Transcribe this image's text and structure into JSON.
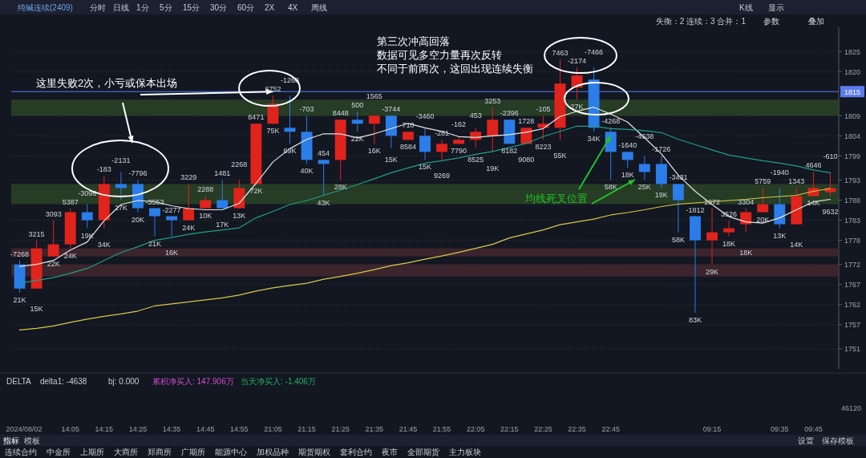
{
  "chart_data": {
    "type": "candlestick",
    "categories": [
      "2024/08/02",
      null,
      null,
      "14:05",
      null,
      "14:15",
      null,
      "14:25",
      null,
      "14:35",
      null,
      "14:45",
      null,
      "14:55",
      null,
      "21:05",
      null,
      "21:15",
      null,
      "21:25",
      null,
      "21:35",
      null,
      "21:45",
      null,
      "21:55",
      null,
      "22:05",
      null,
      "22:15",
      null,
      "22:25",
      null,
      "22:35",
      null,
      "22:45",
      null,
      null,
      null,
      null,
      null,
      "09:15",
      null,
      null,
      null,
      "09:35",
      null,
      "09:45",
      null
    ],
    "ohlc": [
      [
        1772,
        1773,
        1765,
        1766
      ],
      [
        1766,
        1778,
        1766,
        1776
      ],
      [
        1774,
        1783,
        1774,
        1777
      ],
      [
        1777,
        1786,
        1776,
        1785
      ],
      [
        1785,
        1787,
        1781,
        1783
      ],
      [
        1783,
        1794,
        1781,
        1792
      ],
      [
        1792,
        1795,
        1788,
        1791
      ],
      [
        1792,
        1793,
        1785,
        1786
      ],
      [
        1786,
        1786,
        1779,
        1784
      ],
      [
        1784,
        1784,
        1779,
        1783
      ],
      [
        1783,
        1792,
        1783,
        1786
      ],
      [
        1786,
        1789,
        1786,
        1788
      ],
      [
        1788,
        1793,
        1786,
        1786
      ],
      [
        1786,
        1793,
        1786,
        1791
      ],
      [
        1792,
        1807,
        1792,
        1807
      ],
      [
        1807,
        1814,
        1807,
        1812
      ],
      [
        1806,
        1814,
        1802,
        1805
      ],
      [
        1805,
        1809,
        1797,
        1798
      ],
      [
        1798,
        1798,
        1789,
        1797
      ],
      [
        1798,
        1808,
        1793,
        1808
      ],
      [
        1808,
        1810,
        1805,
        1807
      ],
      [
        1807,
        1809,
        1802,
        1809
      ],
      [
        1809,
        1809,
        1801,
        1804
      ],
      [
        1803,
        1805,
        1803,
        1805
      ],
      [
        1804,
        1806,
        1798,
        1800
      ],
      [
        1800,
        1803,
        1798,
        1802
      ],
      [
        1802,
        1804,
        1802,
        1803
      ],
      [
        1803,
        1806,
        1801,
        1805
      ],
      [
        1804,
        1811,
        1800,
        1808
      ],
      [
        1808,
        1808,
        1802,
        1802
      ],
      [
        1802,
        1806,
        1802,
        1806
      ],
      [
        1806,
        1809,
        1803,
        1807
      ],
      [
        1806,
        1823,
        1803,
        1817
      ],
      [
        1816,
        1821,
        1813,
        1819
      ],
      [
        1818,
        1821,
        1805,
        1806
      ],
      [
        1805,
        1806,
        1793,
        1800
      ],
      [
        1800,
        1800,
        1796,
        1798
      ],
      [
        1797,
        1799,
        1793,
        1795
      ],
      [
        1797,
        1799,
        1791,
        1792
      ],
      [
        1792,
        1792,
        1780,
        1788
      ],
      [
        1784,
        1784,
        1760,
        1778
      ],
      [
        1778,
        1786,
        1772,
        1780
      ],
      [
        1780,
        1783,
        1779,
        1781
      ],
      [
        1782,
        1786,
        1780,
        1785
      ],
      [
        1785,
        1791,
        1785,
        1787
      ],
      [
        1787,
        1791,
        1781,
        1782
      ],
      [
        1782,
        1791,
        1782,
        1789
      ],
      [
        1789,
        1795,
        1789,
        1791
      ],
      [
        1790,
        1795,
        1789,
        1791
      ]
    ],
    "colors": [
      "#2b7de9",
      "#e0231c",
      "#e0231c",
      "#e0231c",
      "#2b7de9",
      "#e0231c",
      "#2b7de9",
      "#2b7de9",
      "#2b7de9",
      "#2b7de9",
      "#e0231c",
      "#e0231c",
      "#2b7de9",
      "#e0231c",
      "#e0231c",
      "#e0231c",
      "#2b7de9",
      "#2b7de9",
      "#2b7de9",
      "#e0231c",
      "#2b7de9",
      "#e0231c",
      "#2b7de9",
      "#e0231c",
      "#2b7de9",
      "#e0231c",
      "#e0231c",
      "#e0231c",
      "#e0231c",
      "#2b7de9",
      "#e0231c",
      "#e0231c",
      "#e0231c",
      "#e0231c",
      "#2b7de9",
      "#2b7de9",
      "#2b7de9",
      "#2b7de9",
      "#2b7de9",
      "#2b7de9",
      "#2b7de9",
      "#e0231c",
      "#e0231c",
      "#e0231c",
      "#e0231c",
      "#2b7de9",
      "#e0231c",
      "#e0231c",
      "#e0231c"
    ],
    "value_labels": [
      "-7268",
      "3215",
      "3093",
      "5387",
      "-3096",
      "-183",
      "-2131",
      "-7796",
      "-3553",
      "-2277",
      "3229",
      "2288",
      "1481",
      "2268",
      "8471",
      "6752",
      "-1268",
      "-703",
      "454",
      "8448",
      "500",
      "1565",
      "-3744",
      "710",
      "-3460",
      "-281",
      "-162",
      "453",
      "3253",
      "-2396",
      "1728",
      "-105",
      "7463",
      "-2174",
      "-7466",
      "-4268",
      "-1640",
      "-4638",
      "-1726",
      "-3431",
      "-1812",
      "1072",
      "3526",
      "3304",
      "5759",
      "-1940",
      "1343",
      "4646",
      "-610"
    ],
    "totals": [
      "21K",
      "15K",
      "22K",
      "24K",
      "19K",
      "34K",
      "27K",
      "20K",
      "21K",
      "16K",
      "24K",
      "10K",
      "17K",
      "13K",
      "72K",
      "75K",
      "69K",
      "40K",
      "43K",
      "28K",
      "22K",
      "16K",
      "15K",
      "8584",
      "15K",
      "9269",
      "7790",
      "8525",
      "19K",
      "8182",
      "9080",
      "8223",
      "55K",
      "27K",
      "34K",
      "58K",
      "18K",
      "25K",
      "19K",
      "58K",
      "83K",
      "29K",
      "18K",
      "18K",
      "20K",
      "13K",
      "14K",
      "14K",
      "9632"
    ],
    "series": [
      {
        "type": "line",
        "color": "#e6e6e6",
        "values": [
          1771.5,
          1772.0,
          1773.0,
          1775.6,
          1777.6,
          1782.9,
          1786.9,
          1787.9,
          1787.6,
          1786.6,
          1785.9,
          1785.6,
          1785.6,
          1787.2,
          1792.2,
          1797.5,
          1800.8,
          1803.1,
          1804.5,
          1804.5,
          1803.5,
          1804.5,
          1805.8,
          1807.1,
          1806.0,
          1805.1,
          1803.8,
          1803.6,
          1804.0,
          1804.3,
          1804.9,
          1805.8,
          1808.8,
          1810.1,
          1811.1,
          1809.4,
          1807.4,
          1803.5,
          1799.5,
          1794.2,
          1790.2,
          1786.9,
          1783.9,
          1782.6,
          1782.3,
          1783.6,
          1785.6,
          1787.6,
          1788.2
        ]
      },
      {
        "type": "line",
        "color": "#1f9e86",
        "values": [
          1767.3,
          1768.0,
          1768.7,
          1769.8,
          1771.0,
          1773.0,
          1775.0,
          1776.4,
          1778.0,
          1778.7,
          1779.5,
          1780.1,
          1780.6,
          1781.1,
          1783.6,
          1785.2,
          1786.9,
          1787.9,
          1789.2,
          1790.5,
          1791.9,
          1793.3,
          1794.8,
          1796.0,
          1797.2,
          1797.8,
          1798.5,
          1799.4,
          1800.1,
          1801.1,
          1802.1,
          1803.8,
          1805.1,
          1806.4,
          1806.4,
          1805.8,
          1805.6,
          1805.3,
          1804.8,
          1803.1,
          1801.8,
          1800.5,
          1799.2,
          1798.5,
          1797.8,
          1797.2,
          1796.5,
          1795.5,
          1794.8
        ]
      },
      {
        "type": "line",
        "color": "#d8c84a",
        "values": [
          1755.7,
          1756.1,
          1756.7,
          1757.6,
          1758.4,
          1759.1,
          1759.7,
          1760.4,
          1761.7,
          1762.2,
          1762.7,
          1763.2,
          1763.7,
          1764.4,
          1765.4,
          1766.2,
          1766.8,
          1767.3,
          1768.3,
          1769.0,
          1769.8,
          1770.7,
          1771.7,
          1772.4,
          1773.3,
          1774.1,
          1775.0,
          1776.0,
          1777.0,
          1778.6,
          1779.6,
          1780.6,
          1781.9,
          1782.6,
          1783.3,
          1784.3,
          1784.9,
          1785.6,
          1786.4,
          1787.0,
          1787.3,
          1787.6,
          1787.9,
          1788.2,
          1788.6,
          1788.9,
          1789.2,
          1790.2,
          1790.9
        ]
      }
    ],
    "ylim": [
      1746,
      1831
    ],
    "yticks": [
      1825,
      1820,
      1809,
      1804,
      1799,
      1793,
      1788,
      1783,
      1778,
      1772,
      1767,
      1762,
      1757,
      1751
    ],
    "grid": "y",
    "ref_lines": [
      {
        "axis": "y",
        "value": 1815,
        "label": "1815",
        "color": "#5b7cf0"
      }
    ],
    "bands": [
      {
        "axis": "y",
        "from": 1809,
        "to": 1813,
        "color": "#2e4a26"
      },
      {
        "axis": "y",
        "from": 1787,
        "to": 1792,
        "color": "#2e4a26"
      },
      {
        "axis": "y",
        "from": 1774,
        "to": 1776,
        "color": "#4a2a30"
      },
      {
        "axis": "y",
        "from": 1769,
        "to": 1772,
        "color": "#4a2a30"
      }
    ],
    "annotations": [
      {
        "text": "这里失败2次，小亏或保本出场",
        "x": "21:05",
        "y": 1815
      },
      "第三次冲高回落",
      "数据可见多空力量再次反转",
      "不同于前两次，这回出现连续失衡",
      {
        "text": "均线死叉位置",
        "x": "22:45",
        "y": 1804
      },
      "纯碱连续(2409)",
      "分时",
      "日线",
      "1分",
      "5分",
      "15分",
      "30分",
      "60分",
      "2X",
      "4X",
      "周线",
      "K线",
      "显示",
      "失衡：2  连续：3  合并：1",
      "参数",
      "叠加",
      "DELTA",
      "delta1: -4638",
      "bj: 0.000",
      "累积净买入: 147.906万",
      "当天净买入: -1.406万",
      "46120",
      "指标",
      "模板",
      "设置",
      "保存模板",
      "连续合约",
      "中金所",
      "上期所",
      "大商所",
      "郑商所",
      "广期所",
      "能源中心",
      "加权品种",
      "期货期权",
      "套利合约",
      "夜市",
      "全部期货",
      "主力板块"
    ]
  }
}
